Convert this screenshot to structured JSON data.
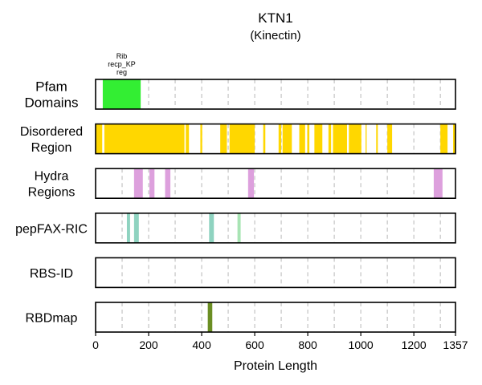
{
  "chart_data": {
    "type": "track",
    "title": "KTN1",
    "subtitle": "(Kinectin)",
    "xlabel": "Protein Length",
    "xlim": [
      0,
      1357
    ],
    "x_ticks": [
      0,
      200,
      400,
      600,
      800,
      1000,
      1200,
      1357
    ],
    "gridlines": [
      100,
      200,
      300,
      400,
      500,
      600,
      700,
      800,
      900,
      1000,
      1100,
      1200,
      1300
    ],
    "grid": true,
    "tracks": [
      {
        "name": "Pfam Domains",
        "label_lines": [
          "Pfam",
          "Domains"
        ],
        "color": "#33ee33",
        "features": [
          {
            "start": 27,
            "end": 170,
            "label_lines": [
              "Rib",
              "recp_KP",
              "reg"
            ]
          }
        ]
      },
      {
        "name": "Disordered Region",
        "label_lines": [
          "Disordered",
          "Region"
        ],
        "color": "#ffd700",
        "features": [
          {
            "start": 0,
            "end": 25
          },
          {
            "start": 33,
            "end": 335
          },
          {
            "start": 340,
            "end": 352
          },
          {
            "start": 395,
            "end": 402
          },
          {
            "start": 470,
            "end": 495
          },
          {
            "start": 505,
            "end": 600
          },
          {
            "start": 632,
            "end": 640
          },
          {
            "start": 690,
            "end": 700
          },
          {
            "start": 705,
            "end": 740
          },
          {
            "start": 768,
            "end": 790
          },
          {
            "start": 798,
            "end": 806
          },
          {
            "start": 825,
            "end": 855
          },
          {
            "start": 878,
            "end": 888
          },
          {
            "start": 895,
            "end": 948
          },
          {
            "start": 955,
            "end": 1002
          },
          {
            "start": 1018,
            "end": 1022
          },
          {
            "start": 1058,
            "end": 1064
          },
          {
            "start": 1100,
            "end": 1118
          },
          {
            "start": 1300,
            "end": 1327
          },
          {
            "start": 1348,
            "end": 1357
          }
        ]
      },
      {
        "name": "Hydra Regions",
        "label_lines": [
          "Hydra",
          "Regions"
        ],
        "color": "#dda0dd",
        "features": [
          {
            "start": 145,
            "end": 178
          },
          {
            "start": 203,
            "end": 222
          },
          {
            "start": 262,
            "end": 282
          },
          {
            "start": 575,
            "end": 597
          },
          {
            "start": 1275,
            "end": 1308
          }
        ]
      },
      {
        "name": "pepFAX-RIC",
        "label_lines": [
          "pepFAX-RIC"
        ],
        "color": "#8fd3c0",
        "features": [
          {
            "start": 118,
            "end": 130,
            "color": "#8fd3c0"
          },
          {
            "start": 145,
            "end": 163,
            "color": "#8fd3c0"
          },
          {
            "start": 428,
            "end": 446,
            "color": "#8fd3c0"
          },
          {
            "start": 535,
            "end": 547,
            "color": "#a8e4b4"
          }
        ]
      },
      {
        "name": "RBS-ID",
        "label_lines": [
          "RBS-ID"
        ],
        "color": "#888888",
        "features": []
      },
      {
        "name": "RBDmap",
        "label_lines": [
          "RBDmap"
        ],
        "color": "#6b8e23",
        "features": [
          {
            "start": 423,
            "end": 440
          }
        ]
      }
    ]
  }
}
